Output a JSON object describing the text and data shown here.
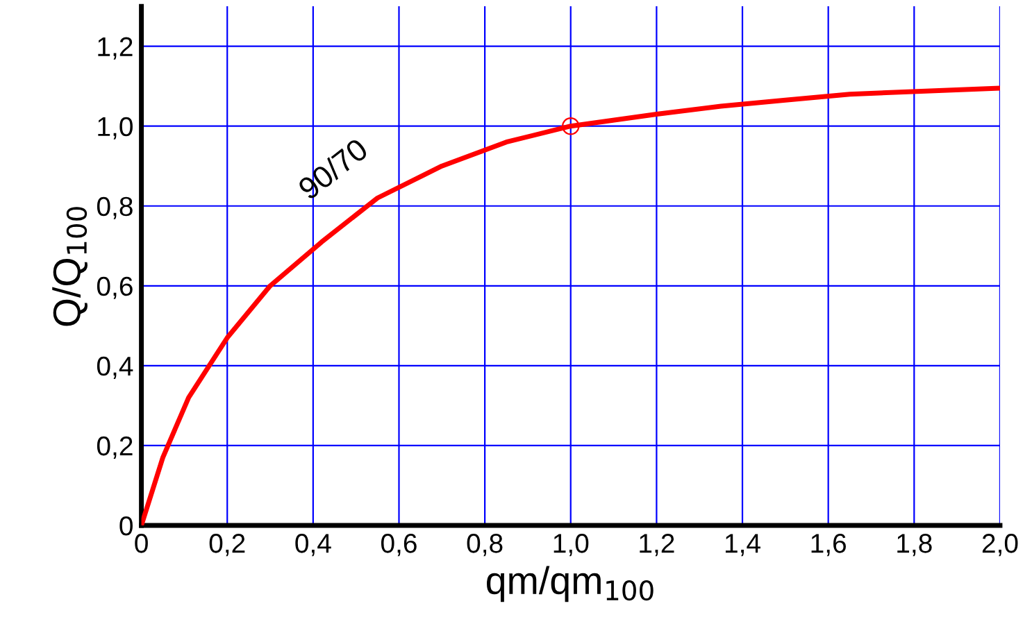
{
  "chart_data": {
    "type": "line",
    "xlabel": "qm/qm$_{100}$",
    "ylabel": "Q/Q$_{100}$",
    "x": [
      0,
      0.05,
      0.11,
      0.2,
      0.3,
      0.42,
      0.55,
      0.7,
      0.85,
      1.0,
      1.2,
      1.35,
      1.5,
      1.65,
      2.0
    ],
    "series": [
      {
        "color": "#ff0000",
        "values": [
          0,
          0.17,
          0.32,
          0.47,
          0.6,
          0.71,
          0.82,
          0.9,
          0.96,
          1.0,
          1.03,
          1.05,
          1.065,
          1.08,
          1.095
        ]
      },
      {
        "type": "scatter",
        "color": "#ff0000",
        "x": [
          1.0
        ],
        "values": [
          1.0
        ],
        "marker": "circle"
      }
    ],
    "annotations": [
      "90/70"
    ],
    "xlim": [
      0,
      2.0
    ],
    "ylim": [
      0,
      1.3
    ],
    "xticks": [
      0,
      {
        "value": 0.2,
        "label": "0,2"
      },
      {
        "value": 0.4,
        "label": "0,4"
      },
      {
        "value": 0.6,
        "label": "0,6"
      },
      {
        "value": 0.8,
        "label": "0,8"
      },
      {
        "value": 1.0,
        "label": "1,0"
      },
      {
        "value": 1.2,
        "label": "1,2"
      },
      {
        "value": 1.4,
        "label": "1,4"
      },
      {
        "value": 1.6,
        "label": "1,6"
      },
      {
        "value": 1.8,
        "label": "1,8"
      },
      {
        "value": 2.0,
        "label": "2,0"
      }
    ],
    "yticks": [
      0,
      {
        "value": 0.2,
        "label": "0,2"
      },
      {
        "value": 0.4,
        "label": "0,4"
      },
      {
        "value": 0.6,
        "label": "0,6"
      },
      {
        "value": 0.8,
        "label": "0,8"
      },
      {
        "value": 1.0,
        "label": "1,0"
      },
      {
        "value": 1.2,
        "label": "1,2"
      }
    ],
    "grid": true,
    "line_style": "solid"
  }
}
